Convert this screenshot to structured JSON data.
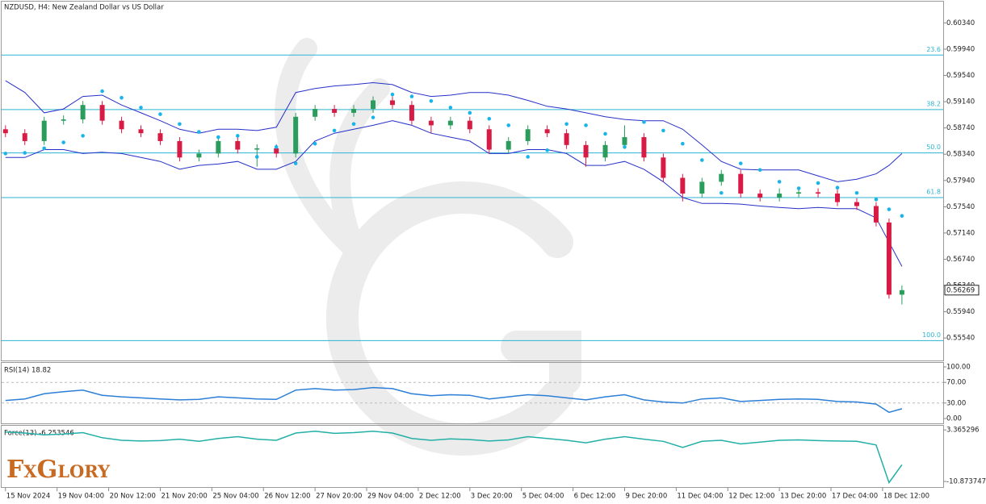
{
  "chart_data": {
    "type": "candlestick",
    "title": "NZDUSD, H4:  New Zealand Dollar vs US Dollar",
    "x": [
      0,
      3,
      6,
      9,
      12,
      15,
      18,
      21,
      24,
      27,
      30,
      33,
      36,
      39,
      42,
      45,
      48,
      51,
      54,
      57,
      60,
      63,
      66,
      69,
      72,
      75,
      78,
      81,
      84,
      87,
      90,
      93,
      96,
      99,
      102,
      105,
      108,
      111,
      114,
      117,
      120,
      123,
      126,
      129,
      132,
      135,
      137,
      139
    ],
    "xlim": [
      -0.6,
      145.4
    ],
    "xticks": [
      {
        "value": 0,
        "label": "15 Nov 2024"
      },
      {
        "value": 8,
        "label": "19 Nov 04:00"
      },
      {
        "value": 16,
        "label": "20 Nov 12:00"
      },
      {
        "value": 24,
        "label": "21 Nov 20:00"
      },
      {
        "value": 32,
        "label": "25 Nov 04:00"
      },
      {
        "value": 40,
        "label": "26 Nov 12:00"
      },
      {
        "value": 48,
        "label": "27 Nov 20:00"
      },
      {
        "value": 56,
        "label": "29 Nov 04:00"
      },
      {
        "value": 64,
        "label": "2 Dec 12:00"
      },
      {
        "value": 72,
        "label": "3 Dec 20:00"
      },
      {
        "value": 80,
        "label": "5 Dec 04:00"
      },
      {
        "value": 88,
        "label": "6 Dec 12:00"
      },
      {
        "value": 96,
        "label": "9 Dec 20:00"
      },
      {
        "value": 104,
        "label": "11 Dec 04:00"
      },
      {
        "value": 112,
        "label": "12 Dec 12:00"
      },
      {
        "value": 120,
        "label": "13 Dec 20:00"
      },
      {
        "value": 128,
        "label": "17 Dec 04:00"
      },
      {
        "value": 136,
        "label": "18 Dec 12:00"
      }
    ],
    "ohlc": [
      [
        0.5872,
        0.5878,
        0.586,
        0.5866
      ],
      [
        0.5866,
        0.5872,
        0.5848,
        0.5854
      ],
      [
        0.5854,
        0.5891,
        0.5848,
        0.5885
      ],
      [
        0.5885,
        0.5893,
        0.5879,
        0.5887
      ],
      [
        0.5887,
        0.5915,
        0.5881,
        0.5909
      ],
      [
        0.5909,
        0.5915,
        0.5879,
        0.5885
      ],
      [
        0.5885,
        0.5891,
        0.5866,
        0.5872
      ],
      [
        0.5872,
        0.5878,
        0.586,
        0.5866
      ],
      [
        0.5866,
        0.5872,
        0.5848,
        0.5854
      ],
      [
        0.5854,
        0.586,
        0.5823,
        0.5829
      ],
      [
        0.5829,
        0.5841,
        0.5823,
        0.5835
      ],
      [
        0.5835,
        0.586,
        0.5829,
        0.5854
      ],
      [
        0.5854,
        0.586,
        0.5835,
        0.5841
      ],
      [
        0.5841,
        0.5849,
        0.5815,
        0.5843
      ],
      [
        0.5843,
        0.5849,
        0.5829,
        0.5835
      ],
      [
        0.5835,
        0.5897,
        0.5829,
        0.5891
      ],
      [
        0.5891,
        0.5909,
        0.5885,
        0.5903
      ],
      [
        0.5903,
        0.5909,
        0.5891,
        0.5897
      ],
      [
        0.5897,
        0.5909,
        0.5891,
        0.5903
      ],
      [
        0.5903,
        0.5922,
        0.5897,
        0.5916
      ],
      [
        0.5916,
        0.5922,
        0.5903,
        0.5909
      ],
      [
        0.5909,
        0.5915,
        0.5879,
        0.5885
      ],
      [
        0.5885,
        0.5891,
        0.5866,
        0.5878
      ],
      [
        0.5878,
        0.5891,
        0.5872,
        0.5885
      ],
      [
        0.5885,
        0.5891,
        0.5866,
        0.5872
      ],
      [
        0.5872,
        0.5878,
        0.5835,
        0.5841
      ],
      [
        0.5841,
        0.586,
        0.5835,
        0.5854
      ],
      [
        0.5854,
        0.5878,
        0.5848,
        0.5872
      ],
      [
        0.5872,
        0.5878,
        0.586,
        0.5866
      ],
      [
        0.5866,
        0.5872,
        0.5842,
        0.5848
      ],
      [
        0.5848,
        0.5854,
        0.5815,
        0.5829
      ],
      [
        0.5829,
        0.5854,
        0.5823,
        0.5848
      ],
      [
        0.5848,
        0.5878,
        0.5842,
        0.586
      ],
      [
        0.586,
        0.5866,
        0.5823,
        0.5829
      ],
      [
        0.5829,
        0.5835,
        0.5792,
        0.5798
      ],
      [
        0.5798,
        0.5804,
        0.5762,
        0.5774
      ],
      [
        0.5774,
        0.5798,
        0.5768,
        0.5792
      ],
      [
        0.5792,
        0.581,
        0.5786,
        0.5804
      ],
      [
        0.5804,
        0.581,
        0.5768,
        0.5774
      ],
      [
        0.5774,
        0.578,
        0.5762,
        0.5768
      ],
      [
        0.5768,
        0.5782,
        0.5762,
        0.5774
      ],
      [
        0.5774,
        0.5784,
        0.5768,
        0.5776
      ],
      [
        0.5776,
        0.5782,
        0.5768,
        0.5774
      ],
      [
        0.5774,
        0.578,
        0.5755,
        0.5761
      ],
      [
        0.5761,
        0.5767,
        0.5749,
        0.5755
      ],
      [
        0.5755,
        0.5761,
        0.5724,
        0.573
      ],
      [
        0.573,
        0.5736,
        0.5614,
        0.562
      ],
      [
        0.562,
        0.5634,
        0.5605,
        0.56269
      ]
    ],
    "up_color": "#2a9d5c",
    "down_color": "#d81b45",
    "ylim": [
      0.5521,
      0.6064
    ],
    "yticks": [
      {
        "value": 0.6034,
        "label": "0.60340"
      },
      {
        "value": 0.5994,
        "label": "0.59940"
      },
      {
        "value": 0.5954,
        "label": "0.59540"
      },
      {
        "value": 0.5914,
        "label": "0.59140"
      },
      {
        "value": 0.5874,
        "label": "0.58740"
      },
      {
        "value": 0.5834,
        "label": "0.58340"
      },
      {
        "value": 0.5794,
        "label": "0.57940"
      },
      {
        "value": 0.5754,
        "label": "0.57540"
      },
      {
        "value": 0.5714,
        "label": "0.57140"
      },
      {
        "value": 0.5674,
        "label": "0.56740"
      },
      {
        "value": 0.5634,
        "label": "0.56340"
      },
      {
        "value": 0.5594,
        "label": "0.55940"
      },
      {
        "value": 0.5554,
        "label": "0.55540"
      }
    ],
    "last_price": 0.56269,
    "fib_color": "#2bb3d3",
    "fib_levels": [
      {
        "value": 0.5985,
        "label": "23.6"
      },
      {
        "value": 0.5902,
        "label": "38.2"
      },
      {
        "value": 0.5836,
        "label": "50.0"
      },
      {
        "value": 0.5768,
        "label": "61.8"
      },
      {
        "value": 0.555,
        "label": "100.0"
      }
    ],
    "bands": {
      "color": "#2630c8",
      "upper": [
        0.5946,
        0.5928,
        0.5897,
        0.5903,
        0.5922,
        0.5924,
        0.5909,
        0.5897,
        0.5885,
        0.5872,
        0.5866,
        0.5872,
        0.5872,
        0.587,
        0.5875,
        0.5928,
        0.5934,
        0.5938,
        0.594,
        0.5943,
        0.594,
        0.5928,
        0.5922,
        0.5924,
        0.5928,
        0.5928,
        0.5924,
        0.5916,
        0.5907,
        0.5903,
        0.5897,
        0.5891,
        0.5887,
        0.5885,
        0.5885,
        0.5872,
        0.5848,
        0.5823,
        0.5811,
        0.581,
        0.581,
        0.581,
        0.5801,
        0.5792,
        0.5796,
        0.5804,
        0.5817,
        0.5835
      ],
      "lower": [
        0.5829,
        0.5829,
        0.5841,
        0.5841,
        0.5835,
        0.5837,
        0.5835,
        0.5829,
        0.5823,
        0.5811,
        0.5817,
        0.5819,
        0.5823,
        0.5811,
        0.5811,
        0.5823,
        0.5854,
        0.5866,
        0.5872,
        0.5878,
        0.5885,
        0.5878,
        0.5866,
        0.586,
        0.5854,
        0.5835,
        0.5835,
        0.5841,
        0.5841,
        0.5835,
        0.5817,
        0.5817,
        0.5823,
        0.5811,
        0.5792,
        0.5768,
        0.5759,
        0.5759,
        0.5758,
        0.5755,
        0.5753,
        0.5751,
        0.5753,
        0.5751,
        0.5751,
        0.5737,
        0.57,
        0.5663
      ]
    },
    "sar": {
      "color": "#19b5ea",
      "values": [
        0.5835,
        0.5836,
        0.5843,
        0.5852,
        0.5862,
        0.593,
        0.592,
        0.5905,
        0.5895,
        0.588,
        0.5868,
        0.586,
        0.5862,
        0.583,
        0.5845,
        0.582,
        0.585,
        0.587,
        0.588,
        0.589,
        0.5925,
        0.5922,
        0.5915,
        0.5905,
        0.5897,
        0.5888,
        0.5878,
        0.583,
        0.584,
        0.588,
        0.5878,
        0.5865,
        0.5845,
        0.5883,
        0.587,
        0.585,
        0.5825,
        0.5775,
        0.582,
        0.581,
        0.5792,
        0.5782,
        0.579,
        0.5783,
        0.5775,
        0.5765,
        0.575,
        0.574
      ]
    },
    "panes": [
      {
        "type": "line",
        "label": "RSI(14) 18.82",
        "color": "#2b7fd6",
        "values": [
          35,
          38,
          48,
          52,
          55,
          45,
          42,
          40,
          38,
          36,
          37,
          42,
          40,
          38,
          37,
          55,
          58,
          55,
          56,
          60,
          58,
          48,
          44,
          46,
          45,
          38,
          42,
          46,
          44,
          40,
          36,
          42,
          46,
          36,
          32,
          30,
          38,
          40,
          33,
          35,
          37,
          38,
          37,
          33,
          32,
          28,
          12,
          18.82
        ],
        "ylim": [
          -9.4,
          107.8
        ],
        "yticks": [
          {
            "value": 100,
            "label": "100.00"
          },
          {
            "value": 70,
            "label": "70.00"
          },
          {
            "value": 30,
            "label": "30.00"
          },
          {
            "value": 0,
            "label": "0.00"
          }
        ],
        "levels": [
          70,
          30
        ]
      },
      {
        "type": "line",
        "label": "Force(13) -6.253546",
        "color": "#22b0a6",
        "values": [
          2.8,
          2.5,
          2.0,
          2.2,
          2.6,
          1.2,
          0.5,
          0.3,
          0.4,
          0.8,
          0.2,
          1.0,
          1.5,
          0.8,
          0.5,
          2.5,
          3.0,
          2.4,
          2.6,
          3.0,
          2.5,
          1.0,
          0.5,
          0.9,
          0.7,
          0.3,
          0.6,
          1.5,
          1.0,
          0.5,
          -0.2,
          0.8,
          1.5,
          0.8,
          0.2,
          -1.5,
          0.2,
          0.5,
          -0.5,
          0,
          0.5,
          0.6,
          0.4,
          0.3,
          0.2,
          -0.8,
          -11.2,
          -6.253546
        ],
        "ylim": [
          -12.2,
          4.5
        ],
        "yticks": [
          3.365296,
          -10.873747
        ]
      }
    ]
  },
  "logo": "FxGlory"
}
